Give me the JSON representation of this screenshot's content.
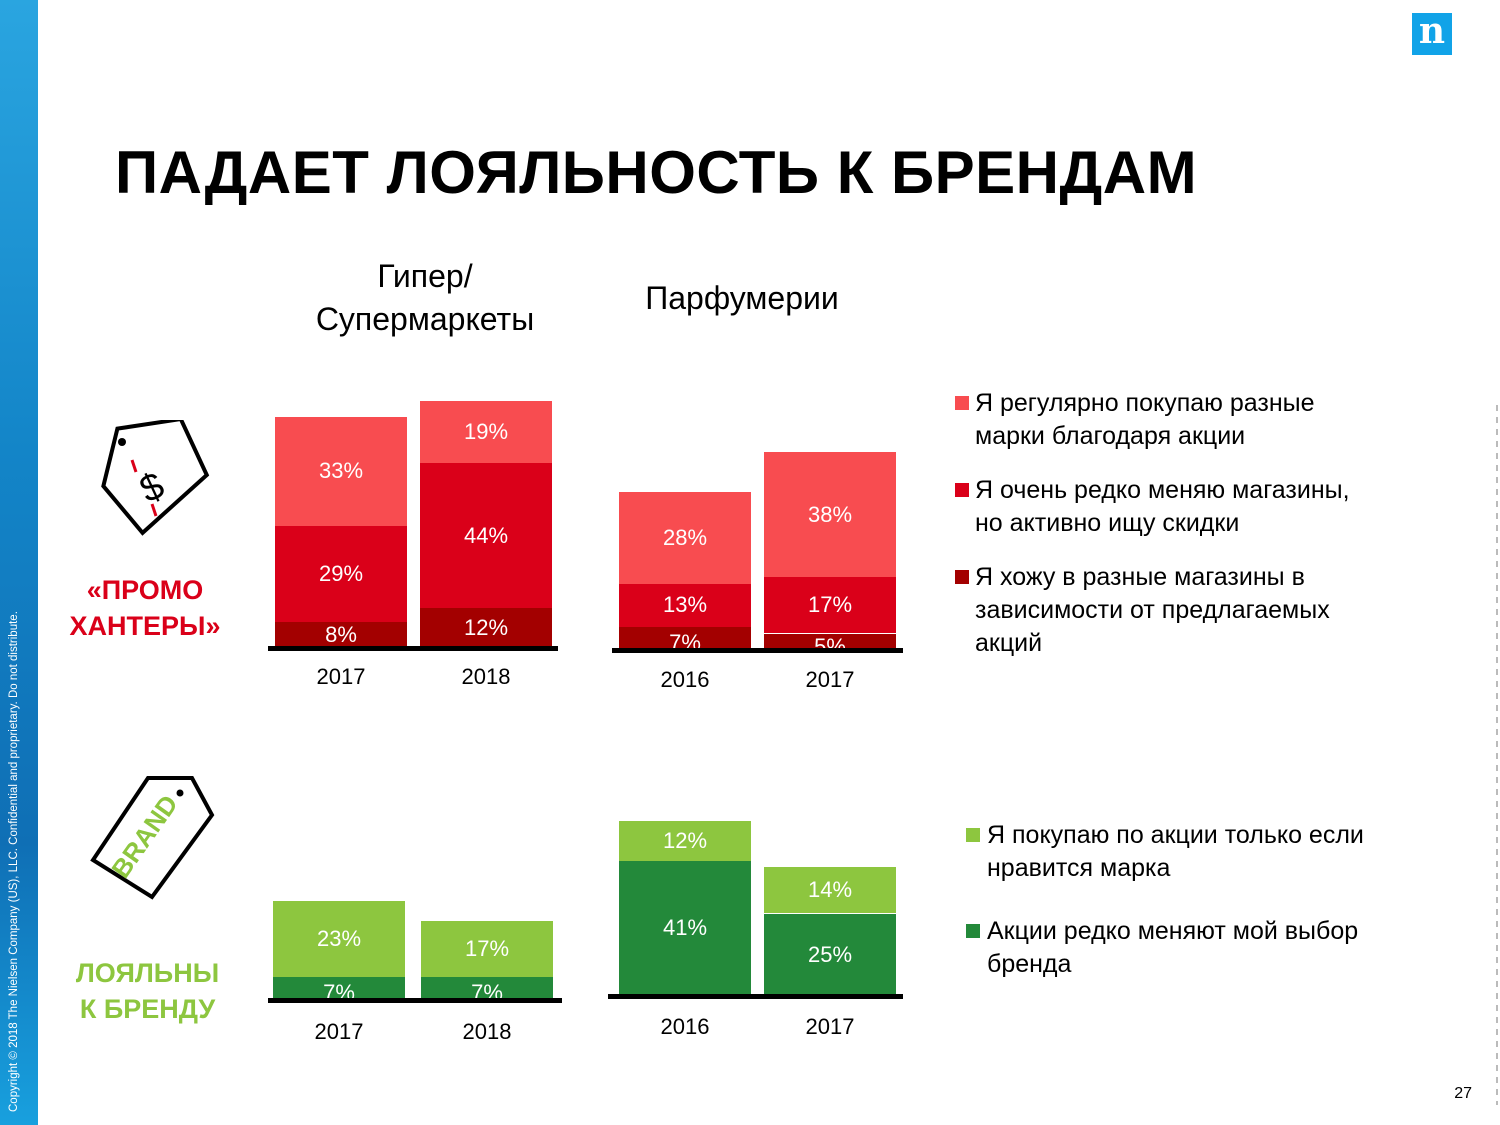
{
  "footer": {
    "copyright": "Copyright © 2018 The Nielsen Company (US), LLC. Confidential and proprietary. Do not distribute.",
    "page_number": "27"
  },
  "logo": {
    "letter": "n"
  },
  "title": "ПАДАЕТ ЛОЯЛЬНОСТЬ К БРЕНДАМ",
  "column_headers": {
    "hyper_line1": "Гипер/",
    "hyper_line2": "Супермаркеты",
    "perfume": "Парфумерии"
  },
  "categories": {
    "promo_line1": "«ПРОМО",
    "promo_line2": "ХАНТЕРЫ»",
    "loyal_line1": "ЛОЯЛЬНЫ",
    "loyal_line2": "К БРЕНДУ",
    "brand_tag": "BRAND",
    "price_tag": "$"
  },
  "colors": {
    "red_light": "#F84C50",
    "red_mid": "#DA0019",
    "red_dark": "#A30000",
    "green_light": "#8DC63F",
    "green_dark": "#23893A",
    "promo": "#DA0019",
    "loyal": "#8DC63F"
  },
  "legend_top": [
    {
      "line1": "Я регулярно покупаю разные",
      "line2": "марки благодаря акции",
      "color": "#F84C50"
    },
    {
      "line1": "Я очень редко меняю магазины,",
      "line2": "но активно ищу скидки",
      "color": "#DA0019"
    },
    {
      "line1": "Я хожу в разные магазины в",
      "line2": "зависимости от предлагаемых",
      "line3": "акций",
      "color": "#A30000"
    }
  ],
  "legend_bottom": [
    {
      "line1": "Я покупаю по акции только если",
      "line2": "нравится марка",
      "color": "#8DC63F"
    },
    {
      "line1": "Акции редко меняют мой выбор",
      "line2": "бренда",
      "color": "#23893A"
    }
  ],
  "chart_data": [
    {
      "type": "bar",
      "stacked": true,
      "title": "Гипер/Супермаркеты — промо хантеры",
      "categories": [
        "2017",
        "2018"
      ],
      "series": [
        {
          "name": "Я хожу в разные магазины в зависимости от предлагаемых акций",
          "values": [
            8,
            12
          ],
          "labels": [
            "8%",
            "12%"
          ],
          "color": "#A30000"
        },
        {
          "name": "Я очень редко меняю магазины, но активно ищу скидки",
          "values": [
            29,
            44
          ],
          "labels": [
            "29%",
            "44%"
          ],
          "color": "#DA0019"
        },
        {
          "name": "Я регулярно покупаю разные марки благодаря акции",
          "values": [
            33,
            19
          ],
          "labels": [
            "33%",
            "19%"
          ],
          "color": "#F84C50"
        }
      ]
    },
    {
      "type": "bar",
      "stacked": true,
      "title": "Парфумерии — промо хантеры",
      "categories": [
        "2016",
        "2017"
      ],
      "series": [
        {
          "name": "Я хожу в разные магазины в зависимости от предлагаемых акций",
          "values": [
            7,
            5
          ],
          "labels": [
            "7%",
            "5%"
          ],
          "color": "#A30000"
        },
        {
          "name": "Я очень редко меняю магазины, но активно ищу скидки",
          "values": [
            13,
            17
          ],
          "labels": [
            "13%",
            "17%"
          ],
          "color": "#DA0019"
        },
        {
          "name": "Я регулярно покупаю разные марки благодаря акции",
          "values": [
            28,
            38
          ],
          "labels": [
            "28%",
            "38%"
          ],
          "color": "#F84C50"
        }
      ]
    },
    {
      "type": "bar",
      "stacked": true,
      "title": "Гипер/Супермаркеты — лояльны к бренду",
      "categories": [
        "2017",
        "2018"
      ],
      "series": [
        {
          "name": "Акции редко меняют мой выбор бренда",
          "values": [
            7,
            7
          ],
          "labels": [
            "7%",
            "7%"
          ],
          "color": "#23893A"
        },
        {
          "name": "Я покупаю по акции только если нравится марка",
          "values": [
            23,
            17
          ],
          "labels": [
            "23%",
            "17%"
          ],
          "color": "#8DC63F"
        }
      ]
    },
    {
      "type": "bar",
      "stacked": true,
      "title": "Парфумерии — лояльны к бренду",
      "categories": [
        "2016",
        "2017"
      ],
      "series": [
        {
          "name": "Акции редко меняют мой выбор бренда",
          "values": [
            41,
            25
          ],
          "labels": [
            "41%",
            "25%"
          ],
          "color": "#23893A"
        },
        {
          "name": "Я покупаю по акции только если нравится марка",
          "values": [
            12,
            14
          ],
          "labels": [
            "12%",
            "14%"
          ],
          "color": "#8DC63F"
        }
      ]
    }
  ]
}
